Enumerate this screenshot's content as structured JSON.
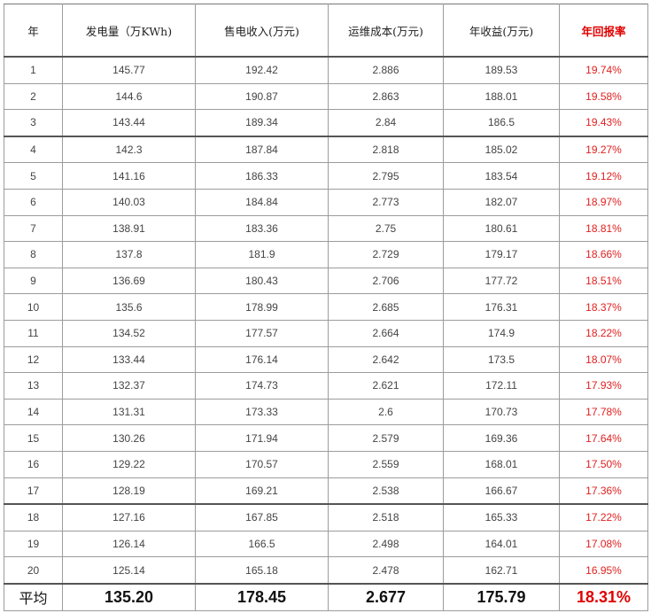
{
  "headers": {
    "year": "年",
    "generation": "发电量（万KWh)",
    "revenue": "售电收入(万元)",
    "om_cost": "运维成本(万元)",
    "annual_income": "年收益(万元)",
    "annual_return": "年回报率"
  },
  "rows": [
    {
      "year": "1",
      "generation": "145.77",
      "revenue": "192.42",
      "om_cost": "2.886",
      "income": "189.53",
      "return": "19.74%"
    },
    {
      "year": "2",
      "generation": "144.6",
      "revenue": "190.87",
      "om_cost": "2.863",
      "income": "188.01",
      "return": "19.58%"
    },
    {
      "year": "3",
      "generation": "143.44",
      "revenue": "189.34",
      "om_cost": "2.84",
      "income": "186.5",
      "return": "19.43%"
    },
    {
      "year": "4",
      "generation": "142.3",
      "revenue": "187.84",
      "om_cost": "2.818",
      "income": "185.02",
      "return": "19.27%"
    },
    {
      "year": "5",
      "generation": "141.16",
      "revenue": "186.33",
      "om_cost": "2.795",
      "income": "183.54",
      "return": "19.12%"
    },
    {
      "year": "6",
      "generation": "140.03",
      "revenue": "184.84",
      "om_cost": "2.773",
      "income": "182.07",
      "return": "18.97%"
    },
    {
      "year": "7",
      "generation": "138.91",
      "revenue": "183.36",
      "om_cost": "2.75",
      "income": "180.61",
      "return": "18.81%"
    },
    {
      "year": "8",
      "generation": "137.8",
      "revenue": "181.9",
      "om_cost": "2.729",
      "income": "179.17",
      "return": "18.66%"
    },
    {
      "year": "9",
      "generation": "136.69",
      "revenue": "180.43",
      "om_cost": "2.706",
      "income": "177.72",
      "return": "18.51%"
    },
    {
      "year": "10",
      "generation": "135.6",
      "revenue": "178.99",
      "om_cost": "2.685",
      "income": "176.31",
      "return": "18.37%"
    },
    {
      "year": "11",
      "generation": "134.52",
      "revenue": "177.57",
      "om_cost": "2.664",
      "income": "174.9",
      "return": "18.22%"
    },
    {
      "year": "12",
      "generation": "133.44",
      "revenue": "176.14",
      "om_cost": "2.642",
      "income": "173.5",
      "return": "18.07%"
    },
    {
      "year": "13",
      "generation": "132.37",
      "revenue": "174.73",
      "om_cost": "2.621",
      "income": "172.11",
      "return": "17.93%"
    },
    {
      "year": "14",
      "generation": "131.31",
      "revenue": "173.33",
      "om_cost": "2.6",
      "income": "170.73",
      "return": "17.78%"
    },
    {
      "year": "15",
      "generation": "130.26",
      "revenue": "171.94",
      "om_cost": "2.579",
      "income": "169.36",
      "return": "17.64%"
    },
    {
      "year": "16",
      "generation": "129.22",
      "revenue": "170.57",
      "om_cost": "2.559",
      "income": "168.01",
      "return": "17.50%"
    },
    {
      "year": "17",
      "generation": "128.19",
      "revenue": "169.21",
      "om_cost": "2.538",
      "income": "166.67",
      "return": "17.36%"
    },
    {
      "year": "18",
      "generation": "127.16",
      "revenue": "167.85",
      "om_cost": "2.518",
      "income": "165.33",
      "return": "17.22%"
    },
    {
      "year": "19",
      "generation": "126.14",
      "revenue": "166.5",
      "om_cost": "2.498",
      "income": "164.01",
      "return": "17.08%"
    },
    {
      "year": "20",
      "generation": "125.14",
      "revenue": "165.18",
      "om_cost": "2.478",
      "income": "162.71",
      "return": "16.95%"
    }
  ],
  "average": {
    "label": "平均",
    "generation": "135.20",
    "revenue": "178.45",
    "om_cost": "2.677",
    "income": "175.79",
    "return": "18.31%"
  },
  "colors": {
    "return_text": "#e02020",
    "border": "#9c9c9c"
  }
}
